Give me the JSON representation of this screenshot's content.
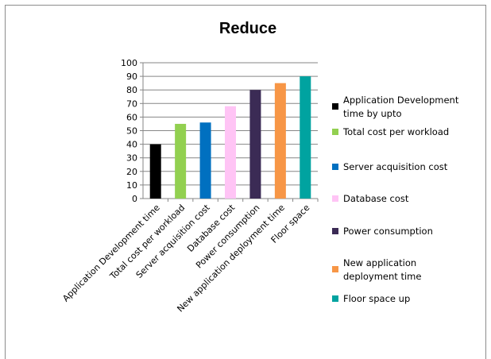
{
  "chart_data": {
    "type": "bar",
    "title": "Reduce",
    "categories": [
      "Application Development time",
      "Total cost per workload",
      "Server acquisition cost",
      "Database cost",
      "Power consumption",
      "New application deployment time",
      "Floor space"
    ],
    "values": [
      40,
      55,
      56,
      68,
      80,
      85,
      90
    ],
    "colors": [
      "#000000",
      "#92d050",
      "#0070c0",
      "#ffc4f5",
      "#3b2b55",
      "#f79646",
      "#00a3a0"
    ],
    "legend": [
      "Application Development time by upto",
      "Total cost per workload",
      "Server acquisition cost",
      "Database cost",
      "Power consumption",
      "New application deployment time",
      "Floor space up"
    ],
    "legend_position": "right",
    "ylim": [
      0,
      100
    ],
    "yticks": [
      0,
      10,
      20,
      30,
      40,
      50,
      60,
      70,
      80,
      90,
      100
    ],
    "grid": true,
    "xlabel": "",
    "ylabel": ""
  }
}
